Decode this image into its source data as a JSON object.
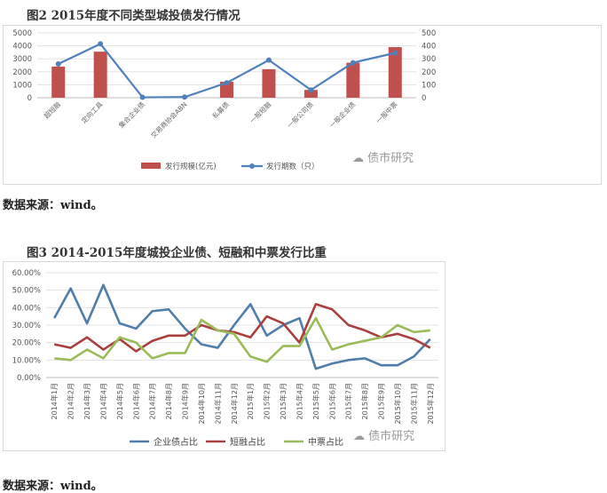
{
  "chart1": {
    "title": "图2 2015年度不同类型城投债发行情况",
    "source": "数据来源：wind。",
    "watermark": "债市研究",
    "chart_data": {
      "type": "bar",
      "categories": [
        "超短融",
        "定向工具",
        "集合企业债",
        "交易商协会ABN",
        "私募债",
        "一般短融",
        "一般公司债",
        "一般企业债",
        "一般中票"
      ],
      "series": [
        {
          "name": "发行规模(亿元)",
          "type": "bar",
          "axis": "left",
          "color": "#c0504d",
          "values": [
            2400,
            3550,
            0,
            0,
            1230,
            2200,
            600,
            2700,
            3900
          ]
        },
        {
          "name": "发行期数（只）",
          "type": "line",
          "axis": "right",
          "color": "#4f81bd",
          "values": [
            260,
            415,
            3,
            5,
            115,
            290,
            60,
            270,
            345
          ]
        }
      ],
      "ylim_left": [
        0,
        5000
      ],
      "ylim_right": [
        0,
        500
      ],
      "yticks_left": [
        "5000",
        "4000",
        "3000",
        "2000",
        "1000",
        "0"
      ],
      "yticks_right": [
        "500",
        "400",
        "300",
        "200",
        "100",
        "0"
      ],
      "legend": "bottom",
      "grid": true
    }
  },
  "chart2": {
    "title": "图3 2014-2015年度城投企业债、短融和中票发行比重",
    "source": "数据来源：wind。",
    "watermark": "债市研究",
    "chart_data": {
      "type": "line",
      "x": [
        "2014年1月",
        "2014年2月",
        "2014年3月",
        "2014年4月",
        "2014年5月",
        "2014年6月",
        "2014年7月",
        "2014年8月",
        "2014年9月",
        "2014年10月",
        "2014年11月",
        "2014年12月",
        "2015年1月",
        "2015年2月",
        "2015年3月",
        "2015年4月",
        "2015年5月",
        "2015年6月",
        "2015年7月",
        "2015年8月",
        "2015年9月",
        "2015年10月",
        "2015年11月",
        "2015年12月"
      ],
      "series": [
        {
          "name": "企业债占比",
          "color": "#4f7eaa",
          "values": [
            34,
            51,
            31,
            53,
            31,
            28,
            38,
            39,
            28,
            19,
            17,
            30,
            42,
            24,
            30,
            34,
            5,
            8,
            10,
            11,
            7,
            7,
            12,
            22
          ]
        },
        {
          "name": "短融占比",
          "color": "#a9403f",
          "values": [
            19,
            17,
            23,
            16,
            22,
            15,
            21,
            24,
            24,
            30,
            27,
            26,
            23,
            35,
            31,
            20,
            42,
            39,
            30,
            27,
            23,
            25,
            22,
            17
          ]
        },
        {
          "name": "中票占比",
          "color": "#9bbb59",
          "values": [
            11,
            10,
            16,
            11,
            23,
            20,
            11,
            14,
            14,
            33,
            27,
            25,
            12,
            9,
            18,
            18,
            34,
            16,
            19,
            21,
            23,
            30,
            26,
            27
          ]
        }
      ],
      "ylim": [
        0,
        60
      ],
      "yticks": [
        "60.00%",
        "50.00%",
        "40.00%",
        "30.00%",
        "20.00%",
        "10.00%",
        "0.00%"
      ],
      "legend": "bottom",
      "grid": true
    }
  }
}
